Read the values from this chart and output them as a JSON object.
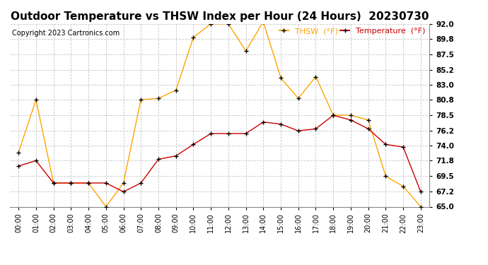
{
  "title": "Outdoor Temperature vs THSW Index per Hour (24 Hours)  20230730",
  "copyright": "Copyright 2023 Cartronics.com",
  "legend_thsw": "THSW  (°F)",
  "legend_temp": "Temperature  (°F)",
  "hours": [
    "00:00",
    "01:00",
    "02:00",
    "03:00",
    "04:00",
    "05:00",
    "06:00",
    "07:00",
    "08:00",
    "09:00",
    "10:00",
    "11:00",
    "12:00",
    "13:00",
    "14:00",
    "15:00",
    "16:00",
    "17:00",
    "18:00",
    "19:00",
    "20:00",
    "21:00",
    "22:00",
    "23:00"
  ],
  "thsw": [
    73.0,
    80.8,
    68.5,
    68.5,
    68.5,
    65.0,
    68.5,
    80.8,
    81.0,
    82.2,
    90.0,
    92.0,
    92.0,
    88.0,
    92.3,
    84.0,
    81.0,
    84.2,
    78.5,
    78.5,
    77.8,
    69.5,
    68.0,
    65.0
  ],
  "temperature": [
    71.0,
    71.8,
    68.5,
    68.5,
    68.5,
    68.5,
    67.2,
    68.5,
    72.0,
    72.5,
    74.2,
    75.8,
    75.8,
    75.8,
    77.5,
    77.2,
    76.2,
    76.5,
    78.5,
    77.8,
    76.5,
    74.2,
    73.8,
    67.2
  ],
  "thsw_color": "#FFA500",
  "temp_color": "#CC0000",
  "ylim_min": 65.0,
  "ylim_max": 92.0,
  "yticks": [
    65.0,
    67.2,
    69.5,
    71.8,
    74.0,
    76.2,
    78.5,
    80.8,
    83.0,
    85.2,
    87.5,
    89.8,
    92.0
  ],
  "background_color": "#ffffff",
  "grid_color": "#c8c8c8",
  "title_fontsize": 11,
  "copyright_fontsize": 7,
  "legend_fontsize": 8,
  "tick_fontsize": 7
}
